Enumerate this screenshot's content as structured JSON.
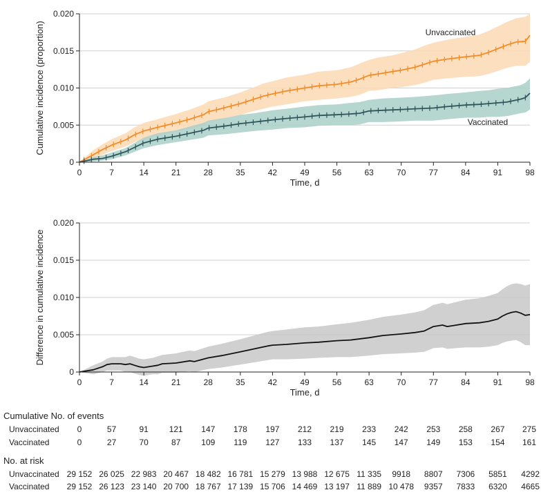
{
  "chart_data": [
    {
      "type": "line",
      "name": "cumulative-incidence",
      "ylabel": "Cumulative incidence (proportion)",
      "xlabel": "Time, d",
      "xlim": [
        0,
        98
      ],
      "ylim": [
        0,
        0.02
      ],
      "xticks": [
        0,
        7,
        14,
        21,
        28,
        35,
        42,
        49,
        56,
        63,
        70,
        77,
        84,
        91,
        98
      ],
      "yticks": [
        0,
        0.005,
        0.01,
        0.015,
        0.02
      ],
      "ytick_labels": [
        "0",
        "0.005",
        "0.010",
        "0.015",
        "0.020"
      ],
      "series": [
        {
          "name": "Unvaccinated",
          "color": "#f28c28",
          "band_color": "#fcd9b4",
          "x": [
            0,
            3,
            5,
            7,
            10,
            12,
            14,
            17,
            21,
            24,
            27,
            28,
            30,
            32,
            35,
            38,
            40,
            42,
            45,
            49,
            52,
            56,
            59,
            61,
            63,
            65,
            68,
            70,
            73,
            75,
            77,
            80,
            84,
            87,
            89,
            91,
            93,
            95,
            97,
            98
          ],
          "values": [
            0,
            0.001,
            0.0017,
            0.0023,
            0.003,
            0.0037,
            0.0042,
            0.0047,
            0.0053,
            0.0058,
            0.0064,
            0.0068,
            0.0071,
            0.0074,
            0.0079,
            0.0085,
            0.0089,
            0.0092,
            0.0096,
            0.01,
            0.0103,
            0.0105,
            0.0108,
            0.0112,
            0.0117,
            0.0119,
            0.0122,
            0.0124,
            0.0128,
            0.0132,
            0.0136,
            0.0139,
            0.0142,
            0.0144,
            0.0148,
            0.0153,
            0.0158,
            0.0162,
            0.0163,
            0.0171
          ],
          "lower": [
            0,
            0.0004,
            0.001,
            0.0015,
            0.0021,
            0.0027,
            0.0031,
            0.0036,
            0.0041,
            0.0045,
            0.005,
            0.0054,
            0.0057,
            0.006,
            0.0064,
            0.0069,
            0.0072,
            0.0075,
            0.0078,
            0.0082,
            0.0084,
            0.0086,
            0.0088,
            0.0091,
            0.0096,
            0.0097,
            0.01,
            0.0101,
            0.0104,
            0.0107,
            0.0111,
            0.0113,
            0.0115,
            0.0116,
            0.0119,
            0.0123,
            0.0127,
            0.013,
            0.013,
            0.0135
          ],
          "upper": [
            0,
            0.0016,
            0.0024,
            0.0031,
            0.0039,
            0.0047,
            0.0053,
            0.0058,
            0.0065,
            0.0071,
            0.0078,
            0.0082,
            0.0085,
            0.0088,
            0.0094,
            0.0101,
            0.0106,
            0.0109,
            0.0114,
            0.0118,
            0.0122,
            0.0124,
            0.0128,
            0.0133,
            0.0138,
            0.0141,
            0.0144,
            0.0147,
            0.0152,
            0.0157,
            0.0161,
            0.0165,
            0.0169,
            0.0172,
            0.0177,
            0.0183,
            0.0189,
            0.0194,
            0.0196,
            0.02
          ]
        },
        {
          "name": "Vaccinated",
          "color": "#2e5559",
          "band_color": "#a9cfc8",
          "x": [
            0,
            3,
            5,
            7,
            10,
            12,
            14,
            17,
            21,
            24,
            27,
            28,
            32,
            35,
            38,
            42,
            45,
            49,
            52,
            56,
            59,
            61,
            63,
            66,
            70,
            73,
            77,
            80,
            84,
            87,
            89,
            91,
            93,
            96,
            97,
            98
          ],
          "values": [
            0,
            0.0004,
            0.0005,
            0.0008,
            0.0014,
            0.002,
            0.0026,
            0.0031,
            0.0035,
            0.0039,
            0.0043,
            0.0046,
            0.0049,
            0.0052,
            0.0054,
            0.0057,
            0.0059,
            0.0061,
            0.0063,
            0.0064,
            0.0065,
            0.0066,
            0.0069,
            0.007,
            0.0071,
            0.0072,
            0.0073,
            0.0075,
            0.0077,
            0.0078,
            0.0079,
            0.008,
            0.0081,
            0.0085,
            0.0087,
            0.0093
          ],
          "lower": [
            0,
            0.0001,
            0.0002,
            0.0004,
            0.0009,
            0.0014,
            0.0019,
            0.0023,
            0.0027,
            0.003,
            0.0033,
            0.0036,
            0.0038,
            0.004,
            0.0042,
            0.0044,
            0.0046,
            0.0047,
            0.0049,
            0.005,
            0.005,
            0.0051,
            0.0054,
            0.0054,
            0.0055,
            0.0056,
            0.0056,
            0.0058,
            0.006,
            0.006,
            0.0061,
            0.0061,
            0.0062,
            0.0066,
            0.0067,
            0.0071
          ],
          "upper": [
            0,
            0.0007,
            0.0009,
            0.0013,
            0.0019,
            0.0026,
            0.0033,
            0.0039,
            0.0043,
            0.0048,
            0.0053,
            0.0056,
            0.006,
            0.0064,
            0.0066,
            0.007,
            0.0072,
            0.0075,
            0.0077,
            0.0078,
            0.008,
            0.0081,
            0.0084,
            0.0086,
            0.0087,
            0.0088,
            0.009,
            0.0092,
            0.0094,
            0.0096,
            0.0097,
            0.0099,
            0.01,
            0.0104,
            0.0107,
            0.0113
          ]
        }
      ]
    },
    {
      "type": "line",
      "name": "difference",
      "ylabel": "Difference in cumulative incidence",
      "xlabel": "Time, d",
      "xlim": [
        0,
        98
      ],
      "ylim": [
        0,
        0.02
      ],
      "xticks": [
        0,
        7,
        14,
        21,
        28,
        35,
        42,
        49,
        56,
        63,
        70,
        77,
        84,
        91,
        98
      ],
      "yticks": [
        0,
        0.005,
        0.01,
        0.015,
        0.02
      ],
      "ytick_labels": [
        "0",
        "0.005",
        "0.010",
        "0.015",
        "0.020"
      ],
      "series": [
        {
          "name": "Difference",
          "color": "#111111",
          "band_color": "#c8c8c8",
          "x": [
            0,
            3,
            5,
            6,
            7,
            9,
            10,
            11,
            12,
            13,
            14,
            16,
            17,
            18,
            21,
            24,
            25,
            28,
            31,
            35,
            38,
            41,
            42,
            45,
            49,
            52,
            56,
            59,
            63,
            66,
            70,
            73,
            75,
            77,
            79,
            80,
            82,
            84,
            87,
            89,
            91,
            92,
            93,
            94,
            95,
            96,
            97,
            98
          ],
          "values": [
            0,
            0.0003,
            0.0007,
            0.001,
            0.0011,
            0.0011,
            0.001,
            0.0011,
            0.0009,
            0.0007,
            0.0006,
            0.0008,
            0.0009,
            0.0011,
            0.0012,
            0.0015,
            0.0014,
            0.0019,
            0.0022,
            0.0027,
            0.0031,
            0.0035,
            0.0036,
            0.0037,
            0.0039,
            0.004,
            0.0042,
            0.0043,
            0.0046,
            0.0049,
            0.0051,
            0.0053,
            0.0055,
            0.0061,
            0.0063,
            0.0061,
            0.0063,
            0.0065,
            0.0066,
            0.0068,
            0.0071,
            0.0075,
            0.0078,
            0.008,
            0.0081,
            0.0079,
            0.0076,
            0.0077
          ],
          "lower": [
            0,
            -0.0003,
            0.0,
            0.0002,
            0.0002,
            0.0002,
            0.0,
            0.0,
            -0.0002,
            -0.0004,
            -0.0005,
            -0.0003,
            -0.0003,
            -0.0001,
            -0.0001,
            0.0001,
            0.0,
            0.0004,
            0.0006,
            0.001,
            0.0013,
            0.0016,
            0.0017,
            0.0017,
            0.0018,
            0.0019,
            0.002,
            0.002,
            0.0022,
            0.0024,
            0.0025,
            0.0026,
            0.0027,
            0.0032,
            0.0033,
            0.0031,
            0.0032,
            0.0033,
            0.0033,
            0.0034,
            0.0036,
            0.0039,
            0.0041,
            0.0042,
            0.0043,
            0.004,
            0.0036,
            0.0036
          ],
          "upper": [
            0,
            0.0009,
            0.0014,
            0.0018,
            0.002,
            0.002,
            0.002,
            0.0022,
            0.002,
            0.0018,
            0.0017,
            0.0019,
            0.0021,
            0.0023,
            0.0025,
            0.0029,
            0.0028,
            0.0034,
            0.0038,
            0.0044,
            0.0049,
            0.0054,
            0.0055,
            0.0057,
            0.006,
            0.0061,
            0.0064,
            0.0066,
            0.007,
            0.0074,
            0.0077,
            0.008,
            0.0083,
            0.009,
            0.0093,
            0.0091,
            0.0094,
            0.0097,
            0.0099,
            0.0102,
            0.0106,
            0.0111,
            0.0115,
            0.0118,
            0.0119,
            0.0118,
            0.0116,
            0.0118
          ]
        }
      ]
    }
  ],
  "series_labels": {
    "unvaccinated": "Unvaccinated",
    "vaccinated": "Vaccinated"
  },
  "risk_table": {
    "events_title": "Cumulative No. of events",
    "risk_title": "No. at risk",
    "events": [
      {
        "group": "Unvaccinated",
        "values": [
          "0",
          "57",
          "91",
          "121",
          "147",
          "178",
          "197",
          "212",
          "219",
          "233",
          "242",
          "253",
          "258",
          "267",
          "275"
        ]
      },
      {
        "group": "Vaccinated",
        "values": [
          "0",
          "27",
          "70",
          "87",
          "109",
          "119",
          "127",
          "133",
          "137",
          "145",
          "147",
          "149",
          "153",
          "154",
          "161"
        ]
      }
    ],
    "at_risk": [
      {
        "group": "Unvaccinated",
        "values": [
          "29 152",
          "26 025",
          "22 983",
          "20 467",
          "18 482",
          "16 781",
          "15 279",
          "13 988",
          "12 675",
          "11 335",
          "9918",
          "8807",
          "7306",
          "5851",
          "4292"
        ]
      },
      {
        "group": "Vaccinated",
        "values": [
          "29 152",
          "26 123",
          "23 140",
          "20 700",
          "18 767",
          "17 139",
          "15 706",
          "14 469",
          "13 197",
          "11 889",
          "10 478",
          "9357",
          "7833",
          "6320",
          "4665"
        ]
      }
    ]
  }
}
